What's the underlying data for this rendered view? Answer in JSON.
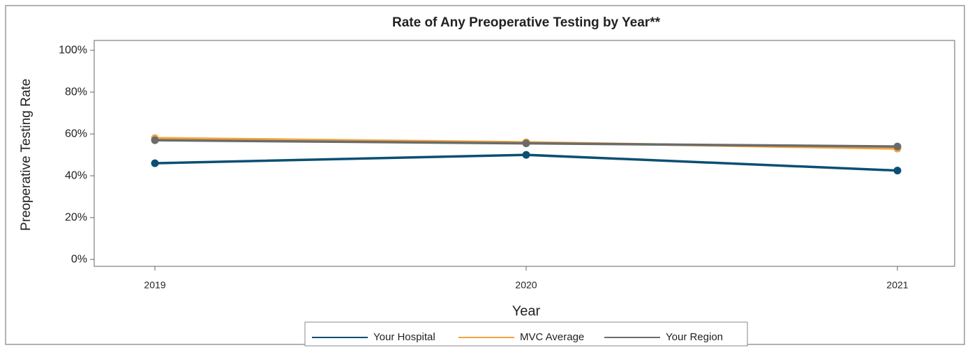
{
  "chart_data": {
    "type": "line",
    "title": "Rate of Any Preoperative Testing by Year**",
    "x_label": "Year",
    "y_label": "Preoperative Testing Rate",
    "categories": [
      "2019",
      "2020",
      "2021"
    ],
    "series": [
      {
        "name": "Your Hospital",
        "color": "#0b4f74",
        "values": [
          46,
          50,
          42.5
        ]
      },
      {
        "name": "MVC Average",
        "color": "#f0a53c",
        "values": [
          58,
          56,
          53
        ]
      },
      {
        "name": "Your Region",
        "color": "#6b6b6b",
        "values": [
          57,
          55.5,
          54
        ]
      }
    ],
    "ylim": [
      -3.3,
      104.7
    ],
    "yticks": [
      {
        "value": 0,
        "label": "0%"
      },
      {
        "value": 20,
        "label": "20%"
      },
      {
        "value": 40,
        "label": "40%"
      },
      {
        "value": 60,
        "label": "60%"
      },
      {
        "value": 80,
        "label": "80%"
      },
      {
        "value": 100,
        "label": "100%"
      }
    ],
    "legend": "bottom"
  }
}
